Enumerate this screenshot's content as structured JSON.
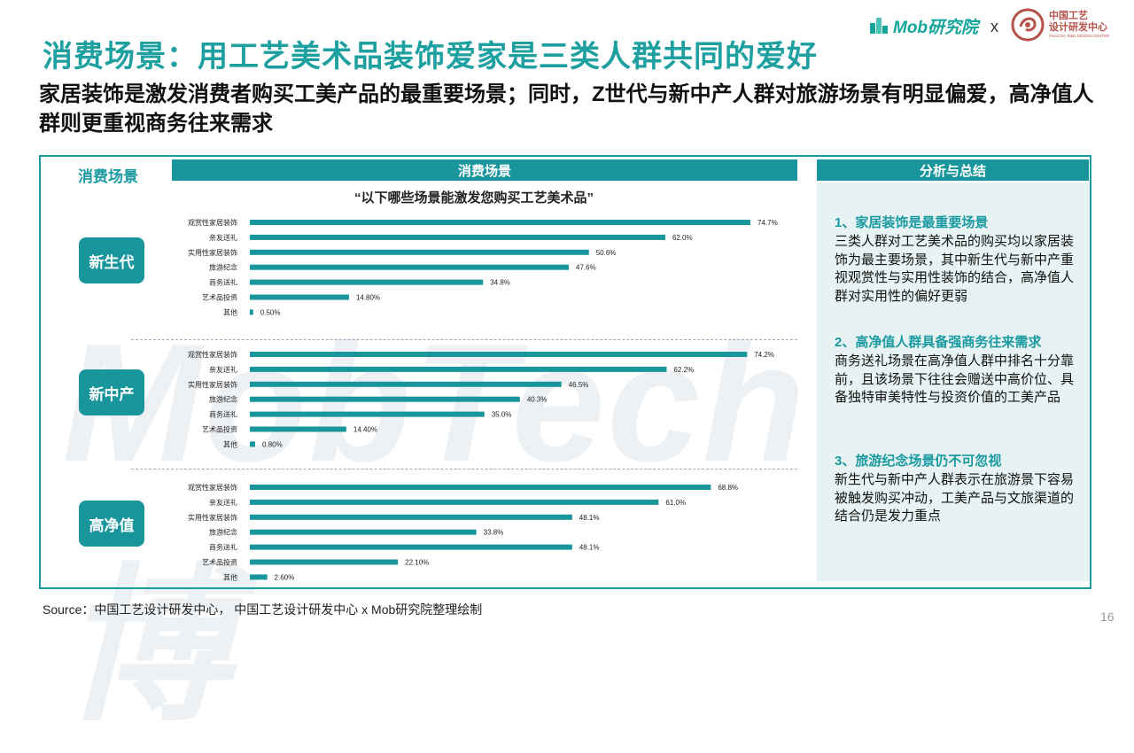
{
  "title": "消费场景：用工艺美术品装饰爱家是三类人群共同的爱好",
  "subtitle": "家居装饰是激发消费者购买工美产品的最重要场景；同时，Z世代与新中产人群对旅游场景有明显偏爱，高净值人群则更重视商务往来需求",
  "logos": {
    "mob": "Mob研究院",
    "x": "x",
    "cn_name": "中国工艺\n设计研发中心",
    "cn_en": "CNACGC R&D DESIGN CENTER"
  },
  "side_label": "消费场景",
  "chart_header": "消费场景",
  "analysis_header": "分析与总结",
  "watermark": "MobTech 袤博",
  "colors": {
    "accent": "#18969c",
    "title": "#1fa0a0",
    "panel_bg": "#e7f3f3"
  },
  "chart_data": {
    "type": "bar",
    "orientation": "horizontal",
    "title": "“以下哪些场景能激发您购买工艺美术品”",
    "categories": [
      "观赏性家居装饰",
      "亲友送礼",
      "实用性家居装饰",
      "旅游纪念",
      "商务送礼",
      "艺术品投资",
      "其他"
    ],
    "xlim": [
      0,
      80
    ],
    "bar_color": "#18969c",
    "groups": [
      {
        "name": "新生代",
        "values": [
          74.7,
          62.0,
          50.6,
          47.6,
          34.8,
          14.8,
          0.5
        ],
        "labels": [
          "74.7%",
          "62.0%",
          "50.6%",
          "47.6%",
          "34.8%",
          "14.80%",
          "0.50%"
        ]
      },
      {
        "name": "新中产",
        "values": [
          74.2,
          62.2,
          46.5,
          40.3,
          35.0,
          14.4,
          0.8
        ],
        "labels": [
          "74.2%",
          "62.2%",
          "46.5%",
          "40.3%",
          "35.0%",
          "14.40%",
          "0.80%"
        ]
      },
      {
        "name": "高净值",
        "values": [
          68.8,
          61.0,
          48.1,
          33.8,
          48.1,
          22.1,
          2.6
        ],
        "labels": [
          "68.8%",
          "61.0%",
          "48.1%",
          "33.8%",
          "48.1%",
          "22.10%",
          "2.60%"
        ]
      }
    ]
  },
  "analysis": [
    {
      "heading": "1、家居装饰是最重要场景",
      "body": "三类人群对工艺美术品的购买均以家居装饰为最主要场景，其中新生代与新中产重视观赏性与实用性装饰的结合，高净值人群对实用性的偏好更弱"
    },
    {
      "heading": "2、高净值人群具备强商务往来需求",
      "body": "商务送礼场景在高净值人群中排名十分靠前，且该场景下往往会赠送中高价位、具备独特审美特性与投资价值的工美产品"
    },
    {
      "heading": "3、旅游纪念场景仍不可忽视",
      "body": "新生代与新中产人群表示在旅游景下容易被触发购买冲动，工美产品与文旅渠道的结合仍是发力重点"
    }
  ],
  "source": "Source：中国工艺设计研发中心， 中国工艺设计研发中心 x Mob研究院整理绘制",
  "page_number": "16"
}
